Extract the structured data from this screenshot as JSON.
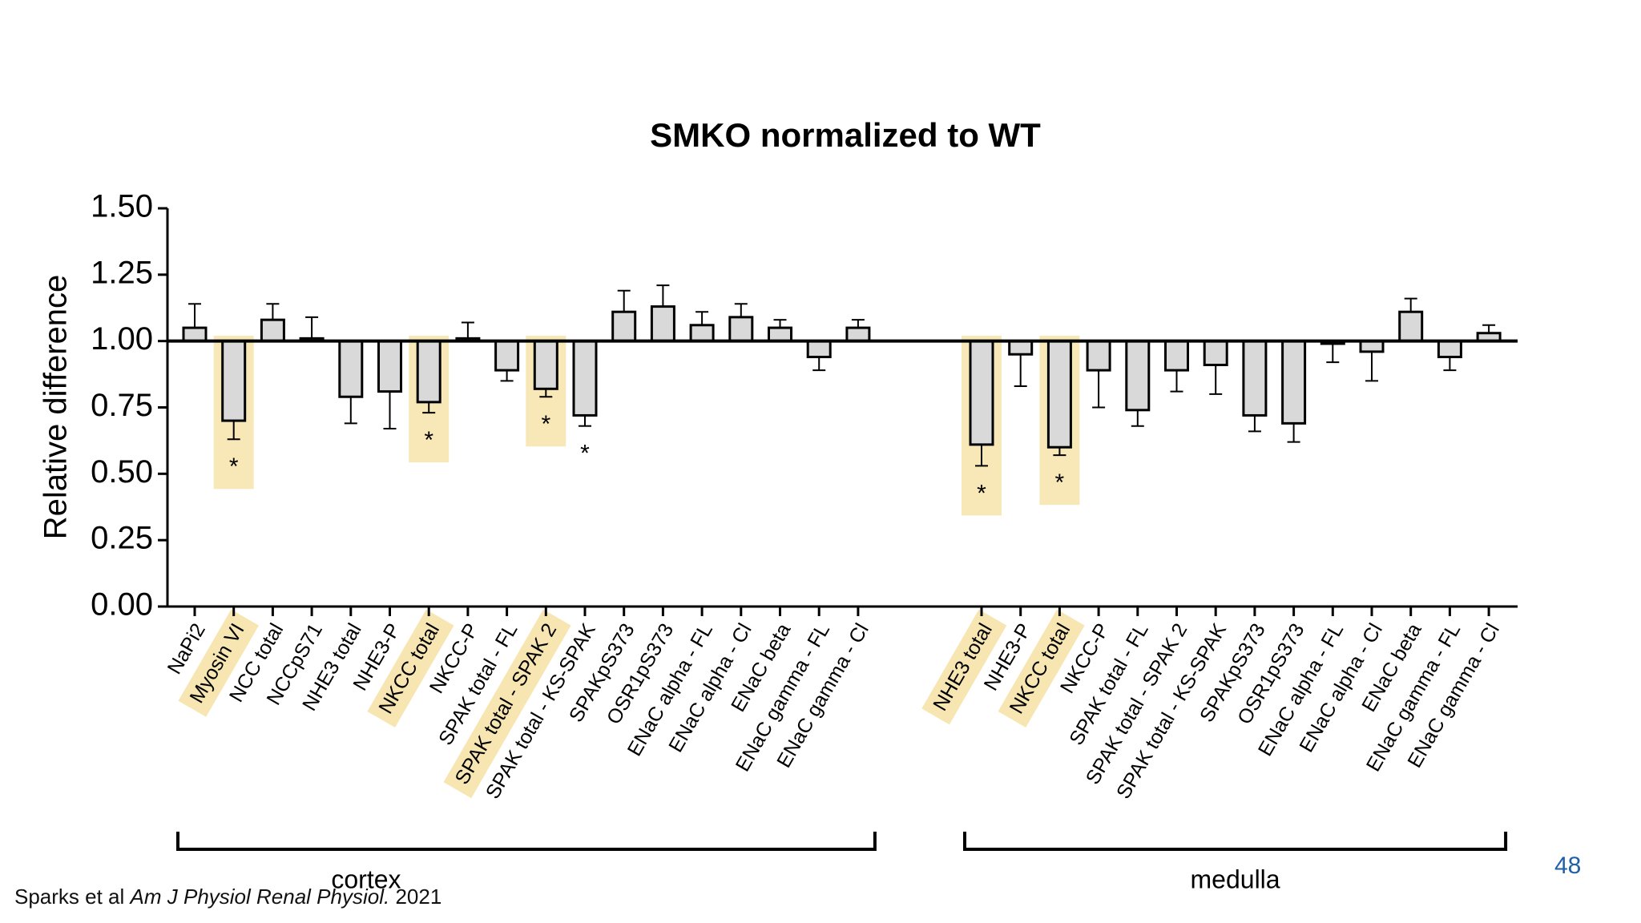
{
  "chart_data": {
    "type": "bar",
    "title": "SMKO normalized to WT",
    "ylabel": "Relative difference",
    "ylim": [
      0,
      1.5
    ],
    "yticks": [
      {
        "value": 0,
        "label": "0.00"
      },
      0.25,
      {
        "value": 0.5,
        "label": "0.50"
      },
      0.75,
      {
        "value": 1,
        "label": "1.00"
      },
      1.25,
      {
        "value": 1.5,
        "label": "1.50"
      }
    ],
    "bar_base": 1,
    "bar_color": "#d9d9d9",
    "highlight_color": "#f2d67e",
    "groups": [
      {
        "name": "cortex",
        "categories": [
          "NaPi2",
          "Myosin VI",
          "NCC total",
          "NCCpS71",
          "NHE3 total",
          "NHE3-P",
          "NKCC total",
          "NKCC-P",
          "SPAK total - FL",
          "SPAK total - SPAK 2",
          "SPAK total - KS-SPAK",
          "SPAKpS373",
          "OSR1pS373",
          "ENaC alpha - FL",
          "ENaC alpha - Cl",
          "ENaC beta",
          "ENaC gamma - FL",
          "ENaC gamma - Cl"
        ],
        "values": [
          1.05,
          0.7,
          1.08,
          1.01,
          0.79,
          0.81,
          0.77,
          1.01,
          0.89,
          0.82,
          0.72,
          1.11,
          1.13,
          1.06,
          1.09,
          1.05,
          0.94,
          1.05
        ],
        "errors": [
          0.09,
          0.07,
          0.06,
          0.08,
          0.1,
          0.14,
          0.04,
          0.06,
          0.04,
          0.03,
          0.04,
          0.08,
          0.08,
          0.05,
          0.05,
          0.03,
          0.05,
          0.03
        ],
        "markers": [
          null,
          "*",
          null,
          null,
          null,
          null,
          "*",
          null,
          null,
          "*",
          "*",
          null,
          null,
          null,
          null,
          null,
          null,
          null
        ],
        "highlighted": [
          false,
          true,
          false,
          false,
          false,
          false,
          true,
          false,
          false,
          true,
          false,
          false,
          false,
          false,
          false,
          false,
          false,
          false
        ]
      },
      {
        "name": "medulla",
        "categories": [
          "NHE3 total",
          "NHE3-P",
          "NKCC total",
          "NKCC-P",
          "SPAK total - FL",
          "SPAK total - SPAK 2",
          "SPAK total - KS-SPAK",
          "SPAKpS373",
          "OSR1pS373",
          "ENaC alpha - FL",
          "ENaC alpha - Cl",
          "ENaC beta",
          "ENaC gamma - FL",
          "ENaC gamma - Cl"
        ],
        "values": [
          0.61,
          0.95,
          0.6,
          0.89,
          0.74,
          0.89,
          0.91,
          0.72,
          0.69,
          0.99,
          0.96,
          1.11,
          0.94,
          1.03
        ],
        "errors": [
          0.08,
          0.12,
          0.03,
          0.14,
          0.06,
          0.08,
          0.11,
          0.06,
          0.07,
          0.07,
          0.11,
          0.05,
          0.05,
          0.03
        ],
        "markers": [
          "*",
          null,
          "*",
          null,
          null,
          null,
          null,
          null,
          null,
          null,
          null,
          null,
          null,
          null
        ],
        "highlighted": [
          true,
          false,
          true,
          false,
          false,
          false,
          false,
          false,
          false,
          false,
          false,
          false,
          false,
          false
        ]
      }
    ]
  },
  "citation": {
    "authors": "Sparks et al",
    "journal": "Am J Physiol Renal Physiol.",
    "year": "2021"
  },
  "page_number": "48"
}
